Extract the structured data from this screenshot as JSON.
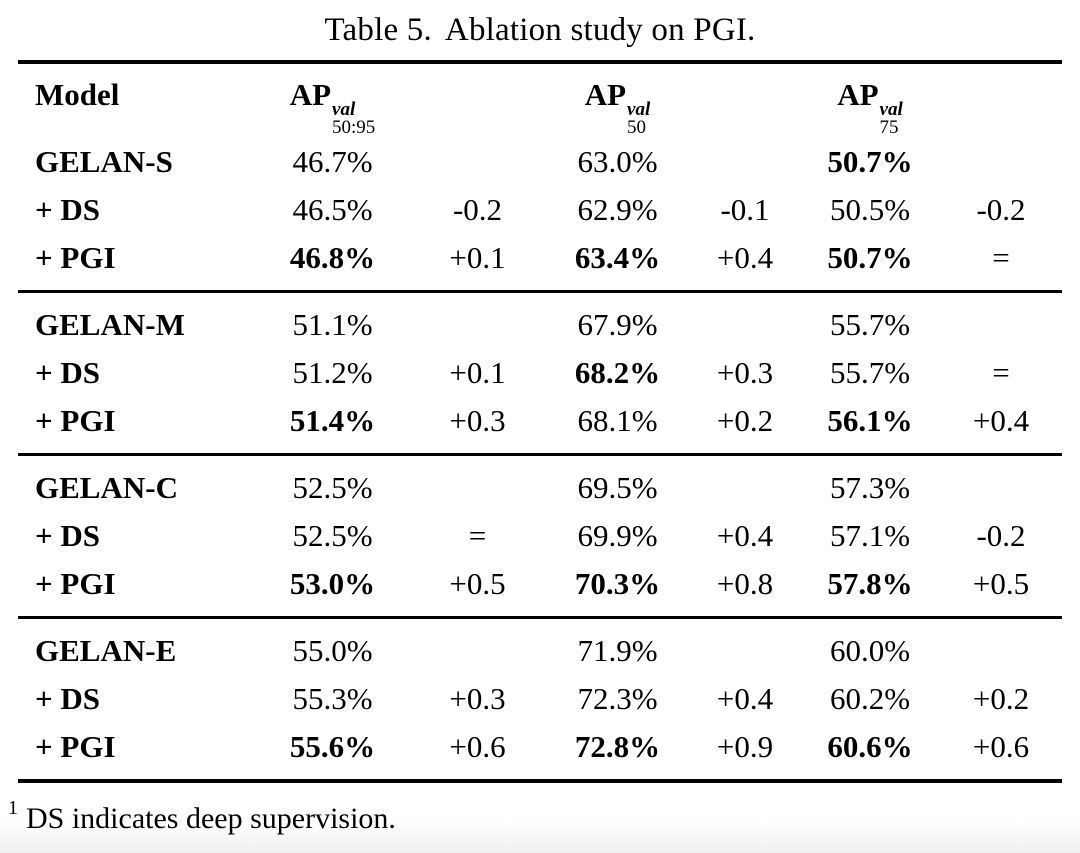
{
  "title": {
    "label": "Table 5.",
    "text": "Ablation study on PGI."
  },
  "table": {
    "headers": {
      "model": "Model",
      "ap_cols": [
        {
          "base": "AP",
          "sup": "val",
          "sub": "50:95"
        },
        {
          "base": "AP",
          "sup": "val",
          "sub": "50"
        },
        {
          "base": "AP",
          "sup": "val",
          "sub": "75"
        }
      ]
    },
    "groups": [
      {
        "rows": [
          {
            "model": "GELAN-S",
            "cells": [
              {
                "text": "46.7%",
                "bold": false
              },
              {
                "text": "",
                "bold": false
              },
              {
                "text": "63.0%",
                "bold": false
              },
              {
                "text": "",
                "bold": false
              },
              {
                "text": "50.7%",
                "bold": true
              },
              {
                "text": "",
                "bold": false
              }
            ]
          },
          {
            "model": "+ DS",
            "cells": [
              {
                "text": "46.5%",
                "bold": false
              },
              {
                "text": "-0.2",
                "bold": false
              },
              {
                "text": "62.9%",
                "bold": false
              },
              {
                "text": "-0.1",
                "bold": false
              },
              {
                "text": "50.5%",
                "bold": false
              },
              {
                "text": "-0.2",
                "bold": false
              }
            ]
          },
          {
            "model": "+ PGI",
            "cells": [
              {
                "text": "46.8%",
                "bold": true
              },
              {
                "text": "+0.1",
                "bold": false
              },
              {
                "text": "63.4%",
                "bold": true
              },
              {
                "text": "+0.4",
                "bold": false
              },
              {
                "text": "50.7%",
                "bold": true
              },
              {
                "text": "=",
                "bold": false
              }
            ]
          }
        ]
      },
      {
        "rows": [
          {
            "model": "GELAN-M",
            "cells": [
              {
                "text": "51.1%",
                "bold": false
              },
              {
                "text": "",
                "bold": false
              },
              {
                "text": "67.9%",
                "bold": false
              },
              {
                "text": "",
                "bold": false
              },
              {
                "text": "55.7%",
                "bold": false
              },
              {
                "text": "",
                "bold": false
              }
            ]
          },
          {
            "model": "+ DS",
            "cells": [
              {
                "text": "51.2%",
                "bold": false
              },
              {
                "text": "+0.1",
                "bold": false
              },
              {
                "text": "68.2%",
                "bold": true
              },
              {
                "text": "+0.3",
                "bold": false
              },
              {
                "text": "55.7%",
                "bold": false
              },
              {
                "text": "=",
                "bold": false
              }
            ]
          },
          {
            "model": "+ PGI",
            "cells": [
              {
                "text": "51.4%",
                "bold": true
              },
              {
                "text": "+0.3",
                "bold": false
              },
              {
                "text": "68.1%",
                "bold": false
              },
              {
                "text": "+0.2",
                "bold": false
              },
              {
                "text": "56.1%",
                "bold": true
              },
              {
                "text": "+0.4",
                "bold": false
              }
            ]
          }
        ]
      },
      {
        "rows": [
          {
            "model": "GELAN-C",
            "cells": [
              {
                "text": "52.5%",
                "bold": false
              },
              {
                "text": "",
                "bold": false
              },
              {
                "text": "69.5%",
                "bold": false
              },
              {
                "text": "",
                "bold": false
              },
              {
                "text": "57.3%",
                "bold": false
              },
              {
                "text": "",
                "bold": false
              }
            ]
          },
          {
            "model": "+ DS",
            "cells": [
              {
                "text": "52.5%",
                "bold": false
              },
              {
                "text": "=",
                "bold": false
              },
              {
                "text": "69.9%",
                "bold": false
              },
              {
                "text": "+0.4",
                "bold": false
              },
              {
                "text": "57.1%",
                "bold": false
              },
              {
                "text": "-0.2",
                "bold": false
              }
            ]
          },
          {
            "model": "+ PGI",
            "cells": [
              {
                "text": "53.0%",
                "bold": true
              },
              {
                "text": "+0.5",
                "bold": false
              },
              {
                "text": "70.3%",
                "bold": true
              },
              {
                "text": "+0.8",
                "bold": false
              },
              {
                "text": "57.8%",
                "bold": true
              },
              {
                "text": "+0.5",
                "bold": false
              }
            ]
          }
        ]
      },
      {
        "rows": [
          {
            "model": "GELAN-E",
            "cells": [
              {
                "text": "55.0%",
                "bold": false
              },
              {
                "text": "",
                "bold": false
              },
              {
                "text": "71.9%",
                "bold": false
              },
              {
                "text": "",
                "bold": false
              },
              {
                "text": "60.0%",
                "bold": false
              },
              {
                "text": "",
                "bold": false
              }
            ]
          },
          {
            "model": "+ DS",
            "cells": [
              {
                "text": "55.3%",
                "bold": false
              },
              {
                "text": "+0.3",
                "bold": false
              },
              {
                "text": "72.3%",
                "bold": false
              },
              {
                "text": "+0.4",
                "bold": false
              },
              {
                "text": "60.2%",
                "bold": false
              },
              {
                "text": "+0.2",
                "bold": false
              }
            ]
          },
          {
            "model": "+ PGI",
            "cells": [
              {
                "text": "55.6%",
                "bold": true
              },
              {
                "text": "+0.6",
                "bold": false
              },
              {
                "text": "72.8%",
                "bold": true
              },
              {
                "text": "+0.9",
                "bold": false
              },
              {
                "text": "60.6%",
                "bold": true
              },
              {
                "text": "+0.6",
                "bold": false
              }
            ]
          }
        ]
      }
    ]
  },
  "footnote": {
    "marker": "1",
    "text": "DS indicates deep supervision."
  }
}
